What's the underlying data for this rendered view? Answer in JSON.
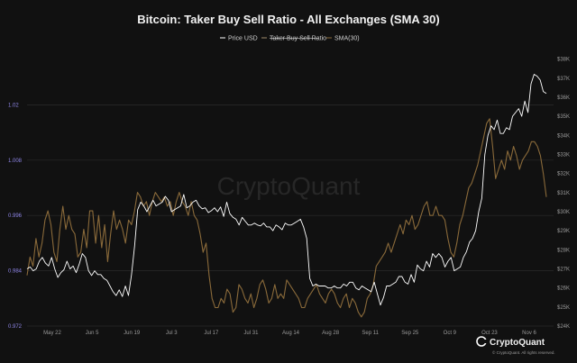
{
  "chart_data": {
    "type": "line",
    "title": "Bitcoin: Taker Buy Sell Ratio - All Exchanges (SMA 30)",
    "x_ticks": [
      "May 22",
      "Jun 5",
      "Jun 19",
      "Jul 3",
      "Jul 17",
      "Jul 31",
      "Aug 14",
      "Aug 28",
      "Sep 11",
      "Sep 25",
      "Oct 9",
      "Oct 23",
      "Nov 6"
    ],
    "y_left": {
      "ticks": [
        "0.972",
        "0.984",
        "0.996",
        "1.008",
        "1.02"
      ],
      "range": [
        0.972,
        1.032
      ]
    },
    "y_right": {
      "ticks": [
        "$24K",
        "$25K",
        "$26K",
        "$27K",
        "$28K",
        "$29K",
        "$30K",
        "$31K",
        "$32K",
        "$33K",
        "$34K",
        "$35K",
        "$36K",
        "$37K",
        "$38K"
      ],
      "range": [
        24000,
        38500
      ]
    },
    "legend": [
      {
        "label": "Price USD",
        "color": "#ffffff",
        "strike": false
      },
      {
        "label": "Taker Buy Sell Ratio",
        "color": "#a08a6a",
        "strike": true
      },
      {
        "label": "SMA(30)",
        "color": "#8a6a3a",
        "strike": false
      }
    ],
    "series": [
      {
        "name": "Price USD",
        "axis": "right",
        "color": "#ffffff",
        "values": [
          27000,
          27100,
          26900,
          27000,
          27400,
          27600,
          27300,
          27150,
          27600,
          27000,
          26550,
          26800,
          26950,
          27400,
          27000,
          27150,
          26800,
          27250,
          27800,
          27600,
          26900,
          26650,
          26900,
          26700,
          26700,
          26500,
          26400,
          26100,
          25800,
          25600,
          25900,
          25550,
          26100,
          25600,
          26700,
          28200,
          30100,
          30500,
          30300,
          30000,
          30300,
          30600,
          30300,
          30400,
          30500,
          30800,
          30600,
          30000,
          30100,
          30200,
          30300,
          30900,
          30200,
          30300,
          30500,
          30600,
          30300,
          30150,
          30200,
          29950,
          30050,
          30200,
          30000,
          30250,
          29750,
          30500,
          29900,
          29700,
          29600,
          29300,
          29700,
          29500,
          29300,
          29300,
          29400,
          29300,
          29250,
          29400,
          29200,
          29200,
          29000,
          29300,
          29200,
          29050,
          29400,
          29300,
          29300,
          29400,
          29500,
          29600,
          29200,
          28600,
          26500,
          26100,
          26200,
          26100,
          26100,
          26100,
          26000,
          26000,
          26100,
          26000,
          26000,
          26200,
          26100,
          26300,
          26300,
          26000,
          25900,
          26100,
          26000,
          25900,
          25800,
          26300,
          25700,
          25100,
          25500,
          26100,
          26100,
          26200,
          26300,
          26600,
          26600,
          26300,
          26200,
          26700,
          26300,
          27200,
          27000,
          26900,
          27400,
          27100,
          27800,
          27600,
          27800,
          27600,
          27100,
          27400,
          27600,
          26900,
          27000,
          27100,
          27600,
          27900,
          28400,
          28600,
          29000,
          30000,
          30700,
          33000,
          34000,
          34500,
          34300,
          34800,
          34100,
          34100,
          34400,
          34300,
          35000,
          35200,
          35400,
          35000,
          35800,
          35200,
          36700,
          37200,
          37100,
          36900,
          36300,
          36200
        ],
        "count_note": ""
      },
      {
        "name": "SMA(30)",
        "axis": "left",
        "color": "#8a6a3a",
        "values": [
          0.983,
          0.987,
          0.985,
          0.991,
          0.987,
          0.99,
          0.995,
          0.997,
          0.994,
          0.988,
          0.986,
          0.993,
          0.998,
          0.993,
          0.996,
          0.993,
          0.992,
          0.987,
          0.988,
          0.993,
          0.989,
          0.997,
          0.997,
          0.99,
          0.996,
          0.989,
          0.994,
          0.986,
          0.992,
          0.997,
          0.993,
          0.995,
          0.993,
          0.99,
          0.995,
          0.994,
          0.997,
          1.001,
          1.0,
          0.998,
          0.999,
          0.996,
          0.999,
          1.001,
          1.0,
          0.999,
          1.0,
          0.998,
          0.999,
          0.996,
          0.999,
          1.001,
          0.999,
          0.998,
          0.996,
          0.999,
          0.996,
          0.995,
          0.992,
          0.988,
          0.99,
          0.983,
          0.978,
          0.976,
          0.976,
          0.978,
          0.977,
          0.98,
          0.979,
          0.975,
          0.976,
          0.981,
          0.98,
          0.978,
          0.977,
          0.979,
          0.976,
          0.978,
          0.981,
          0.982,
          0.98,
          0.977,
          0.978,
          0.981,
          0.978,
          0.979,
          0.978,
          0.982,
          0.981,
          0.98,
          0.979,
          0.978,
          0.976,
          0.976,
          0.978,
          0.979,
          0.98,
          0.981,
          0.979,
          0.978,
          0.977,
          0.979,
          0.98,
          0.979,
          0.977,
          0.976,
          0.978,
          0.979,
          0.976,
          0.978,
          0.977,
          0.975,
          0.974,
          0.975,
          0.978,
          0.979,
          0.981,
          0.985,
          0.986,
          0.987,
          0.988,
          0.99,
          0.988,
          0.99,
          0.992,
          0.994,
          0.992,
          0.995,
          0.994,
          0.996,
          0.993,
          0.994,
          0.996,
          0.998,
          0.999,
          0.996,
          0.996,
          0.998,
          0.996,
          0.996,
          0.995,
          0.991,
          0.988,
          0.987,
          0.99,
          0.994,
          0.996,
          0.999,
          1.002,
          1.003,
          1.005,
          1.007,
          1.01,
          1.013,
          1.016,
          1.017,
          1.011,
          1.004,
          1.006,
          1.008,
          1.006,
          1.01,
          1.008,
          1.011,
          1.009,
          1.006,
          1.008,
          1.009,
          1.01,
          1.012,
          1.012,
          1.011,
          1.009,
          1.005,
          1.0
        ]
      }
    ],
    "grid": true,
    "legend_placement": "top-center"
  },
  "watermark": "CryptoQuant",
  "brand": {
    "name": "CryptoQuant",
    "copyright": "© CryptoQuant. All rights reserved."
  }
}
